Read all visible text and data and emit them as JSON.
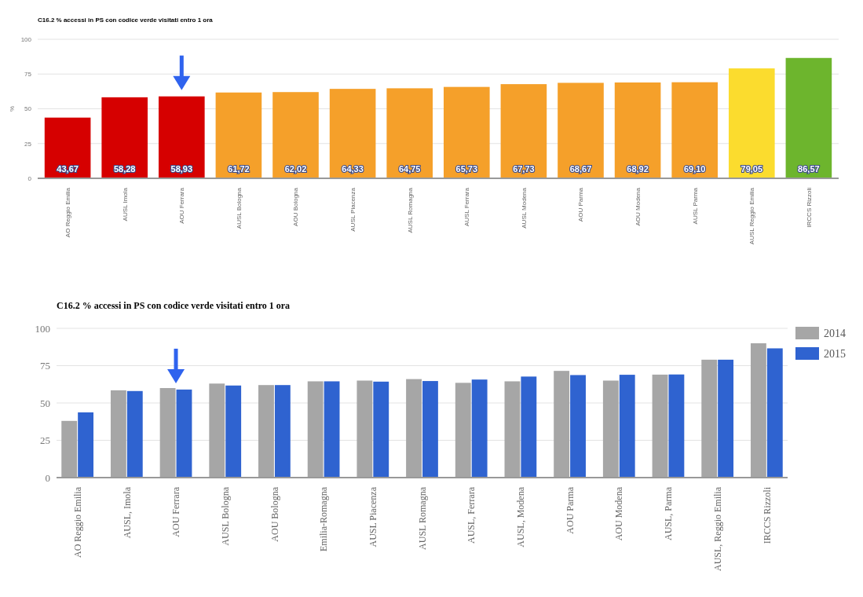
{
  "chart_data": [
    {
      "type": "bar",
      "title": "C16.2 % accessi in PS con codice verde visitati entro 1 ora",
      "ylabel": "%",
      "categories": [
        "AO Reggio Emilia",
        "AUSL Imola",
        "AOU Ferrara",
        "AUSL Bologna",
        "AOU Bologna",
        "AUSL Piacenza",
        "AUSL Romagna",
        "AUSL Ferrara",
        "AUSL Modena",
        "AOU Parma",
        "AOU Modena",
        "AUSL Parma",
        "AUSL Reggio Emilia",
        "IRCCS Rizzoli"
      ],
      "values": [
        43.67,
        58.28,
        58.93,
        61.72,
        62.02,
        64.33,
        64.75,
        65.73,
        67.73,
        68.67,
        68.92,
        69.1,
        79.05,
        86.57
      ],
      "value_labels": [
        "43,67",
        "58,28",
        "58,93",
        "61,72",
        "62,02",
        "64,33",
        "64,75",
        "65,73",
        "67,73",
        "68,67",
        "68,92",
        "69,10",
        "79,05",
        "86,57"
      ],
      "colors": [
        "#d60000",
        "#d60000",
        "#d60000",
        "#f5a02a",
        "#f5a02a",
        "#f5a02a",
        "#f5a02a",
        "#f5a02a",
        "#f5a02a",
        "#f5a02a",
        "#f5a02a",
        "#f5a02a",
        "#fbdc2e",
        "#6db52d"
      ],
      "ylim": [
        0,
        100
      ],
      "yticks": [
        0,
        25,
        50,
        75,
        100
      ],
      "grid": "y",
      "legend": false
    },
    {
      "type": "bar",
      "title": "C16.2 % accessi in PS con codice verde visitati entro 1 ora",
      "categories": [
        "AO Reggio Emilia",
        "AUSL, Imola",
        "AOU Ferrara",
        "AUSL Bologna",
        "AOU Bologna",
        "Emilia-Romagna",
        "AUSL Piacenza",
        "AUSL Romagna",
        "AUSL, Ferrara",
        "AUSL, Modena",
        "AOU Parma",
        "AOU Modena",
        "AUSL, Parma",
        "AUSL, Reggio Emilia",
        "IRCCS Rizzoli"
      ],
      "series": [
        {
          "name": "2014",
          "color": "#a6a6a6",
          "values": [
            38,
            58.5,
            60,
            63,
            62,
            64.5,
            65,
            66,
            63.5,
            64.5,
            71.5,
            65,
            69,
            79,
            90
          ]
        },
        {
          "name": "2015",
          "color": "#2f63d0",
          "values": [
            43.7,
            58,
            59,
            61.7,
            62,
            64.5,
            64.3,
            64.7,
            65.7,
            67.7,
            68.7,
            68.9,
            69.1,
            79,
            86.6
          ]
        }
      ],
      "ylim": [
        0,
        100
      ],
      "yticks": [
        0,
        25,
        50,
        75,
        100
      ],
      "grid": "y",
      "legend": "right"
    }
  ]
}
